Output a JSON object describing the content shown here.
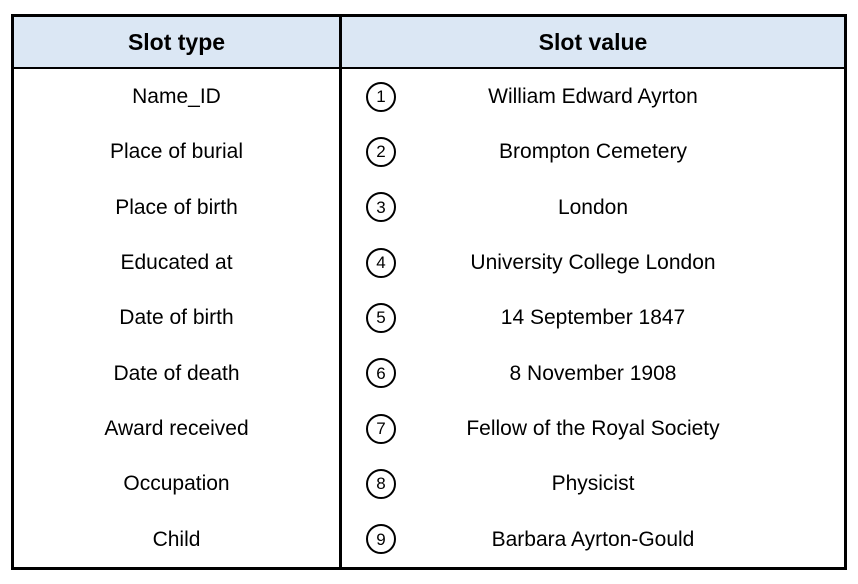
{
  "chart_data": {
    "type": "table",
    "columns": [
      {
        "label": "Slot type"
      },
      {
        "label": "Slot value"
      }
    ],
    "rows": [
      {
        "slot_type": "Name_ID",
        "marker": "1",
        "slot_value": "William Edward Ayrton"
      },
      {
        "slot_type": "Place of burial",
        "marker": "2",
        "slot_value": "Brompton Cemetery"
      },
      {
        "slot_type": "Place of birth",
        "marker": "3",
        "slot_value": "London"
      },
      {
        "slot_type": "Educated at",
        "marker": "4",
        "slot_value": "University College London"
      },
      {
        "slot_type": "Date of birth",
        "marker": "5",
        "slot_value": "14 September 1847"
      },
      {
        "slot_type": "Date of death",
        "marker": "6",
        "slot_value": "8 November 1908"
      },
      {
        "slot_type": "Award received",
        "marker": "7",
        "slot_value": "Fellow of the Royal Society"
      },
      {
        "slot_type": "Occupation",
        "marker": "8",
        "slot_value": "Physicist"
      },
      {
        "slot_type": "Child",
        "marker": "9",
        "slot_value": "Barbara Ayrton-Gould"
      }
    ],
    "layout": {
      "grid": "off",
      "row_dividers": "none",
      "header_style": "bold-centered"
    }
  },
  "colors": {
    "header_bg": "#dbe7f4",
    "border": "#000000",
    "text": "#000000"
  }
}
